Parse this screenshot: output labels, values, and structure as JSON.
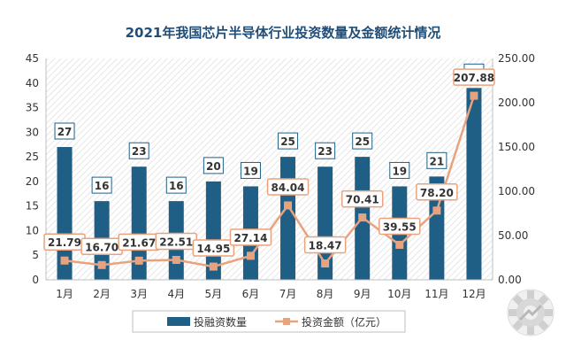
{
  "chart_data": {
    "type": "bar",
    "title": "2021年我国芯片半导体行业投资数量及金额统计情况",
    "categories": [
      "1月",
      "2月",
      "3月",
      "4月",
      "5月",
      "6月",
      "7月",
      "8月",
      "9月",
      "10月",
      "11月",
      "12月"
    ],
    "series": [
      {
        "name": "投融资数量",
        "type": "bar",
        "axis": "left",
        "color": "#1f5f86",
        "values": [
          27,
          16,
          23,
          16,
          20,
          19,
          25,
          23,
          25,
          19,
          21,
          39
        ],
        "labels": [
          "27",
          "16",
          "23",
          "16",
          "20",
          "19",
          "25",
          "23",
          "25",
          "19",
          "21",
          "39"
        ]
      },
      {
        "name": "投资金额（亿元）",
        "type": "line",
        "axis": "right",
        "color": "#e8a37e",
        "values": [
          21.79,
          16.7,
          21.67,
          22.51,
          14.95,
          27.14,
          84.04,
          18.47,
          70.41,
          39.55,
          78.2,
          207.88
        ],
        "labels": [
          "21.79",
          "16.70",
          "21.67",
          "22.51",
          "14.95",
          "27.14",
          "84.04",
          "18.47",
          "70.41",
          "39.55",
          "78.20",
          "207.88"
        ]
      }
    ],
    "left_axis": {
      "ylim": [
        0,
        45
      ],
      "ticks": [
        "0",
        "5",
        "10",
        "15",
        "20",
        "25",
        "30",
        "35",
        "40",
        "45"
      ]
    },
    "right_axis": {
      "ylim": [
        0,
        250
      ],
      "ticks": [
        "0.00",
        "50.00",
        "100.00",
        "150.00",
        "200.00",
        "250.00"
      ]
    },
    "grid": false,
    "legend_position": "bottom"
  },
  "logo": {
    "name": "gear-logo-icon"
  }
}
